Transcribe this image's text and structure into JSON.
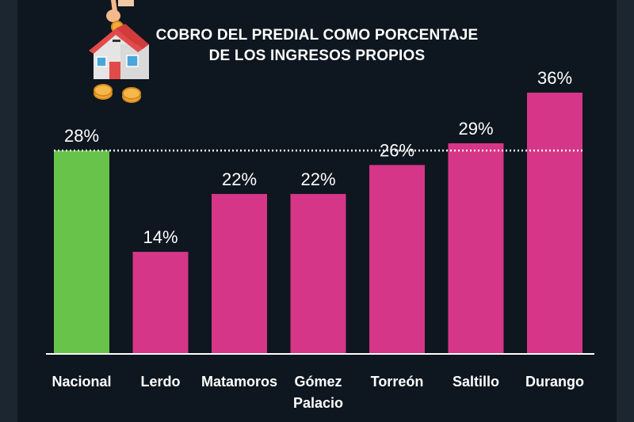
{
  "chart_data": {
    "type": "bar",
    "title_lines": [
      "COBRO DEL PREDIAL COMO PORCENTAJE",
      "DE LOS INGRESOS PROPIOS"
    ],
    "categories": [
      "Nacional",
      "Lerdo",
      "Matamoros",
      "Gómez Palacio",
      "Torreón",
      "Saltillo",
      "Durango"
    ],
    "values": [
      28,
      14,
      22,
      22,
      26,
      29,
      36
    ],
    "value_labels": [
      "28%",
      "14%",
      "22%",
      "22%",
      "26%",
      "29%",
      "36%"
    ],
    "category_lines": [
      [
        "Nacional"
      ],
      [
        "Lerdo"
      ],
      [
        "Matamoros"
      ],
      [
        "Gómez",
        "Palacio"
      ],
      [
        "Torreón"
      ],
      [
        "Saltillo"
      ],
      [
        "Durango"
      ]
    ],
    "reference_line": {
      "value": 28,
      "style": "dotted"
    },
    "ylim": [
      0,
      36
    ],
    "grid": false,
    "legend": "none",
    "colors": {
      "highlight": "#67c34a",
      "default": "#d63687",
      "axis": "#ffffff",
      "reference": "#ffffff"
    },
    "highlight_index": 0
  },
  "icons": {
    "decoration": "house-coin-icon"
  }
}
